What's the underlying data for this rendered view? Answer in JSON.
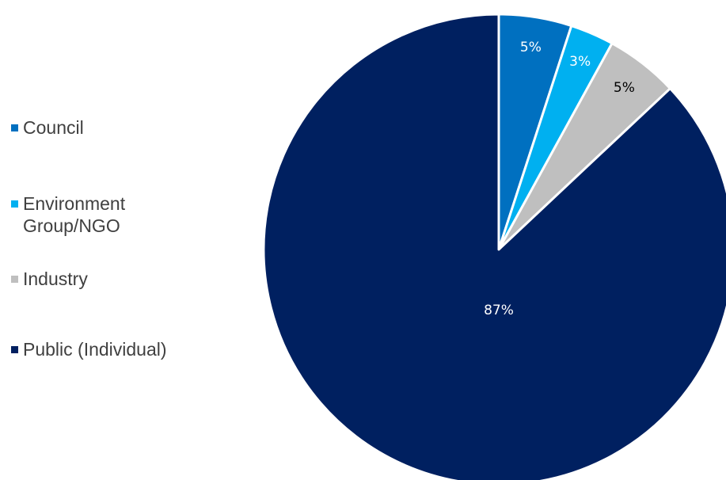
{
  "chart_data": {
    "type": "pie",
    "title": "",
    "legend_position": "left",
    "start_angle": "12 o'clock, clockwise",
    "categories": [
      "Council",
      "Environment Group/NGO",
      "Industry",
      "Public (Individual)"
    ],
    "legend_labels": [
      "Council",
      "Environment\nGroup/NGO",
      "Industry",
      "Public (Individual)"
    ],
    "values": [
      5,
      3,
      5,
      87
    ],
    "data_labels": [
      "5%",
      "3%",
      "5%",
      "87%"
    ],
    "colors": [
      "#0070C0",
      "#00B0F0",
      "#BFBFBF",
      "#002060"
    ],
    "label_colors": [
      "#FFFFFF",
      "#FFFFFF",
      "#000000",
      "#FFFFFF"
    ]
  }
}
